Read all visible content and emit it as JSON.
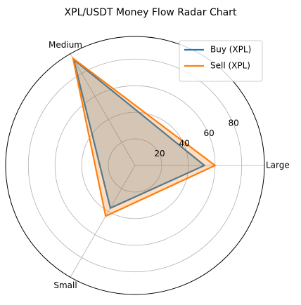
{
  "chart_data": {
    "type": "radar",
    "title": "XPL/USDT Money Flow Radar Chart",
    "categories": [
      "Large",
      "Medium",
      "Small"
    ],
    "series": [
      {
        "name": "Buy (XPL)",
        "color": "#1f77b4",
        "values": [
          52,
          92,
          37
        ]
      },
      {
        "name": "Sell (XPL)",
        "color": "#ff7f0e",
        "values": [
          60,
          93,
          44
        ]
      }
    ],
    "rlim": [
      0,
      97
    ],
    "rticks": [
      20,
      40,
      60,
      80
    ],
    "grid": true,
    "legend": "upper right"
  }
}
